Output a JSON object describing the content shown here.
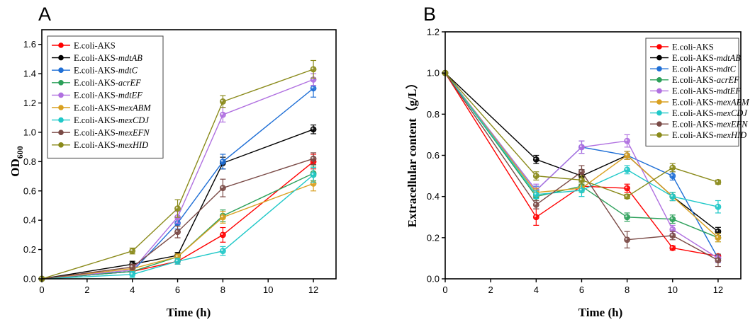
{
  "chart_data": [
    {
      "type": "line",
      "panel": "A",
      "xlabel": "Time (h)",
      "ylabel": "OD",
      "ylabel_sub": "600",
      "x": [
        0,
        4,
        6,
        8,
        12
      ],
      "xlim": [
        0,
        13
      ],
      "ylim": [
        0,
        1.7
      ],
      "xticks": [
        0,
        2,
        4,
        6,
        8,
        10,
        12
      ],
      "yticks": [
        0.0,
        0.2,
        0.4,
        0.6,
        0.8,
        1.0,
        1.2,
        1.4,
        1.6
      ],
      "ytick_decimals": 1,
      "legend_position": "top-left",
      "series": [
        {
          "name": "E.coli-AKS",
          "prefix": "E.coli-AKS",
          "suffix": "",
          "color": "#ff0000",
          "values": [
            0,
            0.05,
            0.12,
            0.3,
            0.8
          ],
          "errors": [
            0,
            0.02,
            0.02,
            0.05,
            0.05
          ]
        },
        {
          "name": "E.coli-AKS-mdtAB",
          "prefix": "E.coli-AKS-",
          "suffix": "mdtAB",
          "color": "#000000",
          "values": [
            0,
            0.1,
            0.16,
            0.79,
            1.02
          ],
          "errors": [
            0,
            0.02,
            0.02,
            0.04,
            0.03
          ]
        },
        {
          "name": "E.coli-AKS-mdtC",
          "prefix": "E.coli-AKS-",
          "suffix": "mdtC",
          "color": "#1f6fd6",
          "values": [
            0,
            0.05,
            0.38,
            0.8,
            1.3
          ],
          "errors": [
            0,
            0.02,
            0.04,
            0.05,
            0.06
          ]
        },
        {
          "name": "E.coli-AKS-acrEF",
          "prefix": "E.coli-AKS-",
          "suffix": "acrEF",
          "color": "#2ca05a",
          "values": [
            0,
            0.05,
            0.15,
            0.43,
            0.72
          ],
          "errors": [
            0,
            0.02,
            0.02,
            0.04,
            0.05
          ]
        },
        {
          "name": "E.coli-AKS-mdtEF",
          "prefix": "E.coli-AKS-",
          "suffix": "mdtEF",
          "color": "#b070e0",
          "values": [
            0,
            0.06,
            0.42,
            1.12,
            1.36
          ],
          "errors": [
            0,
            0.02,
            0.04,
            0.05,
            0.04
          ]
        },
        {
          "name": "E.coli-AKS-mexABM",
          "prefix": "E.coli-AKS-",
          "suffix": "mexABM",
          "color": "#d9a020",
          "values": [
            0,
            0.07,
            0.15,
            0.42,
            0.65
          ],
          "errors": [
            0,
            0.02,
            0.02,
            0.04,
            0.05
          ]
        },
        {
          "name": "E.coli-AKS-mexCDJ",
          "prefix": "E.coli-AKS-",
          "suffix": "mexCDJ",
          "color": "#20c8c8",
          "values": [
            0,
            0.03,
            0.12,
            0.19,
            0.71
          ],
          "errors": [
            0,
            0.02,
            0.02,
            0.03,
            0.05
          ]
        },
        {
          "name": "E.coli-AKS-mexEFN",
          "prefix": "E.coli-AKS-",
          "suffix": "mexEFN",
          "color": "#7a4a46",
          "values": [
            0,
            0.08,
            0.32,
            0.62,
            0.82
          ],
          "errors": [
            0,
            0.02,
            0.04,
            0.06,
            0.04
          ]
        },
        {
          "name": "E.coli-AKS-mexHID",
          "prefix": "E.coli-AKS-",
          "suffix": "mexHID",
          "color": "#8a8a1a",
          "values": [
            0,
            0.19,
            0.48,
            1.21,
            1.43
          ],
          "errors": [
            0,
            0.02,
            0.06,
            0.04,
            0.06
          ]
        }
      ]
    },
    {
      "type": "line",
      "panel": "B",
      "xlabel": "Time (h)",
      "ylabel": "Extracellular content（g/L）",
      "x": [
        0,
        4,
        6,
        8,
        10,
        12
      ],
      "xlim": [
        0,
        13
      ],
      "ylim": [
        0,
        1.2
      ],
      "xticks": [
        0,
        2,
        4,
        6,
        8,
        10,
        12
      ],
      "yticks": [
        0.0,
        0.2,
        0.4,
        0.6,
        0.8,
        1.0,
        1.2
      ],
      "ytick_decimals": 1,
      "legend_position": "top-right",
      "series": [
        {
          "name": "E.coli-AKS",
          "prefix": "E.coli-AKS",
          "suffix": "",
          "color": "#ff0000",
          "values": [
            1.0,
            0.3,
            0.45,
            0.44,
            0.15,
            0.11
          ],
          "errors": [
            0,
            0.04,
            0.02,
            0.02,
            0.01,
            0.01
          ]
        },
        {
          "name": "E.coli-AKS-mdtAB",
          "prefix": "E.coli-AKS-",
          "suffix": "mdtAB",
          "color": "#000000",
          "values": [
            1.0,
            0.58,
            0.5,
            0.6,
            0.4,
            0.23
          ],
          "errors": [
            0,
            0.02,
            0.03,
            0.02,
            0.02,
            0.02
          ]
        },
        {
          "name": "E.coli-AKS-mdtC",
          "prefix": "E.coli-AKS-",
          "suffix": "mdtC",
          "color": "#1f6fd6",
          "values": [
            1.0,
            0.43,
            0.64,
            0.6,
            0.5,
            0.1
          ],
          "errors": [
            0,
            0.02,
            0.03,
            0.02,
            0.02,
            0.02
          ]
        },
        {
          "name": "E.coli-AKS-acrEF",
          "prefix": "E.coli-AKS-",
          "suffix": "acrEF",
          "color": "#2ca05a",
          "values": [
            1.0,
            0.4,
            0.45,
            0.3,
            0.29,
            0.2
          ],
          "errors": [
            0,
            0.02,
            0.02,
            0.02,
            0.02,
            0.02
          ]
        },
        {
          "name": "E.coli-AKS-mdtEF",
          "prefix": "E.coli-AKS-",
          "suffix": "mdtEF",
          "color": "#b070e0",
          "values": [
            1.0,
            0.43,
            0.64,
            0.67,
            0.24,
            0.1
          ],
          "errors": [
            0,
            0.03,
            0.03,
            0.03,
            0.02,
            0.02
          ]
        },
        {
          "name": "E.coli-AKS-mexABM",
          "prefix": "E.coli-AKS-",
          "suffix": "mexABM",
          "color": "#d9a020",
          "values": [
            1.0,
            0.42,
            0.44,
            0.6,
            0.4,
            0.2
          ],
          "errors": [
            0,
            0.02,
            0.02,
            0.02,
            0.02,
            0.02
          ]
        },
        {
          "name": "E.coli-AKS-mexCDJ",
          "prefix": "E.coli-AKS-",
          "suffix": "mexCDJ",
          "color": "#20c8c8",
          "values": [
            1.0,
            0.41,
            0.43,
            0.53,
            0.4,
            0.35
          ],
          "errors": [
            0,
            0.02,
            0.03,
            0.02,
            0.02,
            0.03
          ]
        },
        {
          "name": "E.coli-AKS-mexEFN",
          "prefix": "E.coli-AKS-",
          "suffix": "mexEFN",
          "color": "#7a4a46",
          "values": [
            1.0,
            0.36,
            0.52,
            0.19,
            0.21,
            0.09
          ],
          "errors": [
            0,
            0.02,
            0.03,
            0.04,
            0.02,
            0.03
          ]
        },
        {
          "name": "E.coli-AKS-mexHID",
          "prefix": "E.coli-AKS-",
          "suffix": "mexHID",
          "color": "#8a8a1a",
          "values": [
            1.0,
            0.5,
            0.48,
            0.4,
            0.54,
            0.47
          ],
          "errors": [
            0,
            0.02,
            0.02,
            0.01,
            0.02,
            0.01
          ]
        }
      ]
    }
  ]
}
